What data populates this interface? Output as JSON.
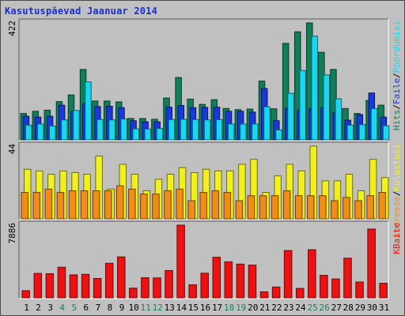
{
  "title": "Kasutuspäevad Jaanuar 2014",
  "colors": {
    "hits": "#117e5a",
    "files": "#1838d8",
    "pages": "#18d8f0",
    "visits": "#f0f020",
    "sites": "#f08c18",
    "kbytes": "#ee1111",
    "weekend_day": "#1e7e5a",
    "weekday": "#000000",
    "panel_bg": "#c0c0c0",
    "title": "#1a2fd0"
  },
  "chart_data": [
    {
      "type": "bar",
      "panel": "top",
      "axis_max_label": "422",
      "ylim": [
        0,
        422
      ],
      "categories": [
        "1",
        "2",
        "3",
        "4",
        "5",
        "6",
        "7",
        "8",
        "9",
        "10",
        "11",
        "12",
        "13",
        "14",
        "15",
        "16",
        "17",
        "18",
        "19",
        "20",
        "21",
        "22",
        "23",
        "24",
        "25",
        "26",
        "27",
        "28",
        "29",
        "30",
        "31"
      ],
      "series": [
        {
          "name": "Hits",
          "color_key": "hits",
          "values": [
            95,
            103,
            107,
            138,
            162,
            254,
            140,
            140,
            137,
            77,
            77,
            74,
            151,
            225,
            147,
            128,
            145,
            113,
            109,
            111,
            212,
            112,
            348,
            390,
            422,
            316,
            254,
            113,
            95,
            142,
            125
          ]
        },
        {
          "name": "Faile",
          "color_key": "files",
          "values": [
            85,
            82,
            85,
            125,
            103,
            130,
            120,
            121,
            116,
            69,
            65,
            65,
            118,
            124,
            116,
            117,
            118,
            103,
            103,
            100,
            185,
            69,
            114,
            106,
            113,
            116,
            99,
            71,
            91,
            169,
            82
          ]
        },
        {
          "name": "Pöördumisi",
          "color_key": "pages",
          "values": [
            53,
            57,
            50,
            72,
            106,
            209,
            73,
            72,
            75,
            40,
            39,
            41,
            73,
            74,
            73,
            72,
            73,
            57,
            57,
            57,
            119,
            36,
            168,
            250,
            374,
            234,
            148,
            53,
            55,
            113,
            51
          ]
        }
      ]
    },
    {
      "type": "bar",
      "panel": "middle",
      "axis_max_label": "44",
      "ylim": [
        0,
        44
      ],
      "categories": [
        "1",
        "2",
        "3",
        "4",
        "5",
        "6",
        "7",
        "8",
        "9",
        "10",
        "11",
        "12",
        "13",
        "14",
        "15",
        "16",
        "17",
        "18",
        "19",
        "20",
        "21",
        "22",
        "23",
        "24",
        "25",
        "26",
        "27",
        "28",
        "29",
        "30",
        "31"
      ],
      "series": [
        {
          "name": "Külastusi",
          "color_key": "visits",
          "values": [
            30,
            29,
            27,
            29,
            28,
            27,
            38,
            18,
            33,
            27,
            17,
            24,
            27,
            31,
            28,
            30,
            29,
            29,
            33,
            36,
            16,
            26,
            33,
            29,
            44,
            23,
            23,
            27,
            17,
            36,
            25
          ]
        },
        {
          "name": "Aadresse",
          "color_key": "sites",
          "values": [
            16,
            16,
            18,
            16,
            17,
            17,
            17,
            17,
            20,
            18,
            15,
            15,
            17,
            18,
            11,
            16,
            17,
            16,
            11,
            14,
            14,
            14,
            17,
            14,
            14,
            14,
            11,
            13,
            11,
            14,
            16
          ]
        }
      ]
    },
    {
      "type": "bar",
      "panel": "bottom",
      "axis_max_label": "7886",
      "ylim": [
        0,
        7886
      ],
      "categories": [
        "1",
        "2",
        "3",
        "4",
        "5",
        "6",
        "7",
        "8",
        "9",
        "10",
        "11",
        "12",
        "13",
        "14",
        "15",
        "16",
        "17",
        "18",
        "19",
        "20",
        "21",
        "22",
        "23",
        "24",
        "25",
        "26",
        "27",
        "28",
        "29",
        "30",
        "31"
      ],
      "series": [
        {
          "name": "KBaite",
          "color_key": "kbytes",
          "values": [
            770,
            2650,
            2620,
            3320,
            2490,
            2550,
            2100,
            3750,
            4440,
            1050,
            2180,
            2160,
            2960,
            7886,
            1410,
            2670,
            4400,
            3910,
            3660,
            3550,
            650,
            1170,
            5130,
            1020,
            5220,
            2440,
            2050,
            4300,
            1720,
            7460,
            1580
          ]
        }
      ]
    }
  ],
  "x_labels": [
    "1",
    "2",
    "3",
    "4",
    "5",
    "6",
    "7",
    "8",
    "9",
    "10",
    "11",
    "12",
    "13",
    "14",
    "15",
    "16",
    "17",
    "18",
    "19",
    "20",
    "21",
    "22",
    "23",
    "24",
    "25",
    "26",
    "27",
    "28",
    "29",
    "30",
    "31"
  ],
  "weekend_days": [
    "4",
    "5",
    "11",
    "12",
    "18",
    "19",
    "25",
    "26"
  ],
  "right_labels": {
    "top": [
      {
        "text": "Hits",
        "color_key": "hits"
      },
      {
        "text": "/",
        "color_key": "weekday"
      },
      {
        "text": "Faile",
        "color_key": "files"
      },
      {
        "text": "/",
        "color_key": "weekday"
      },
      {
        "text": "Pöördumisi",
        "color_key": "pages"
      }
    ],
    "middle": [
      {
        "text": "Aadresse",
        "color_key": "sites"
      },
      {
        "text": "/",
        "color_key": "weekday"
      },
      {
        "text": "Külastusi",
        "color_key": "visits"
      }
    ],
    "bottom": [
      {
        "text": "KBaite",
        "color_key": "kbytes"
      }
    ]
  }
}
